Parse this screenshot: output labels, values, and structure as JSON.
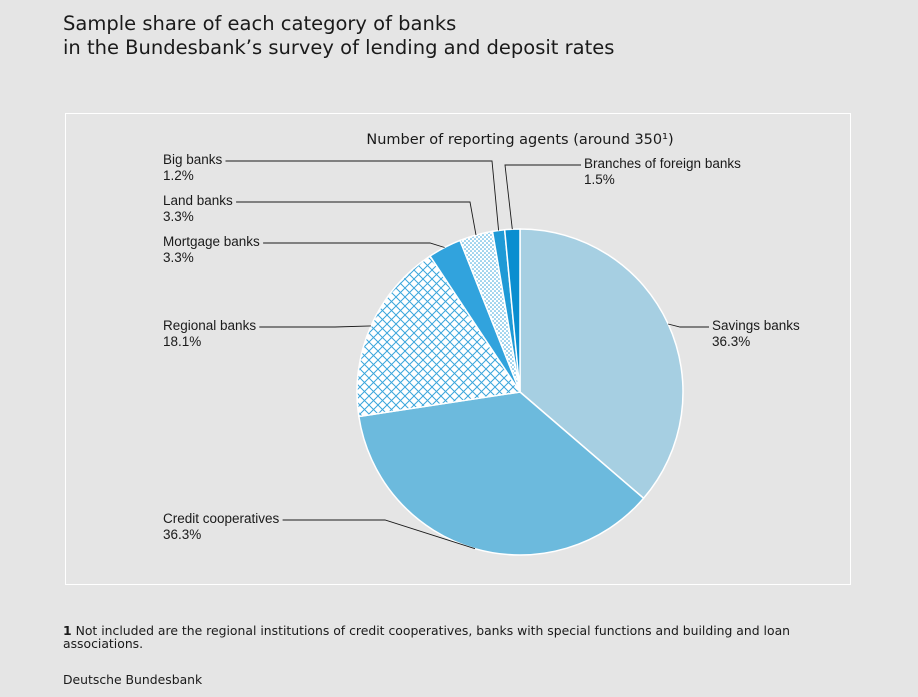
{
  "title_lines": [
    "Sample share of each category of banks",
    "in the Bundesbank’s survey of lending and deposit rates"
  ],
  "chart_data": {
    "type": "pie",
    "subtitle": "Number of reporting agents (around 350¹)",
    "slices": [
      {
        "label": "Savings banks",
        "value": 36.3,
        "value_label": "36.3%",
        "color": "#a6cfe2",
        "pattern": "none"
      },
      {
        "label": "Credit cooperatives",
        "value": 36.3,
        "value_label": "36.3%",
        "color": "#6cbadd",
        "pattern": "none"
      },
      {
        "label": "Regional banks",
        "value": 18.1,
        "value_label": "18.1%",
        "color": "#3aa6dc",
        "pattern": "crosshatch"
      },
      {
        "label": "Mortgage banks",
        "value": 3.3,
        "value_label": "3.3%",
        "color": "#31a3dd",
        "pattern": "none"
      },
      {
        "label": "Land banks",
        "value": 3.3,
        "value_label": "3.3%",
        "color": "#3aa6dc",
        "pattern": "dots"
      },
      {
        "label": "Big banks",
        "value": 1.2,
        "value_label": "1.2%",
        "color": "#1f9ad6",
        "pattern": "none"
      },
      {
        "label": "Branches of foreign banks",
        "value": 1.5,
        "value_label": "1.5%",
        "color": "#0a8ed0",
        "pattern": "none"
      }
    ]
  },
  "footnote": {
    "marker": "1",
    "text": "Not included are the regional institutions of credit cooperatives, banks with special functions and building and loan associations."
  },
  "source": "Deutsche Bundesbank"
}
